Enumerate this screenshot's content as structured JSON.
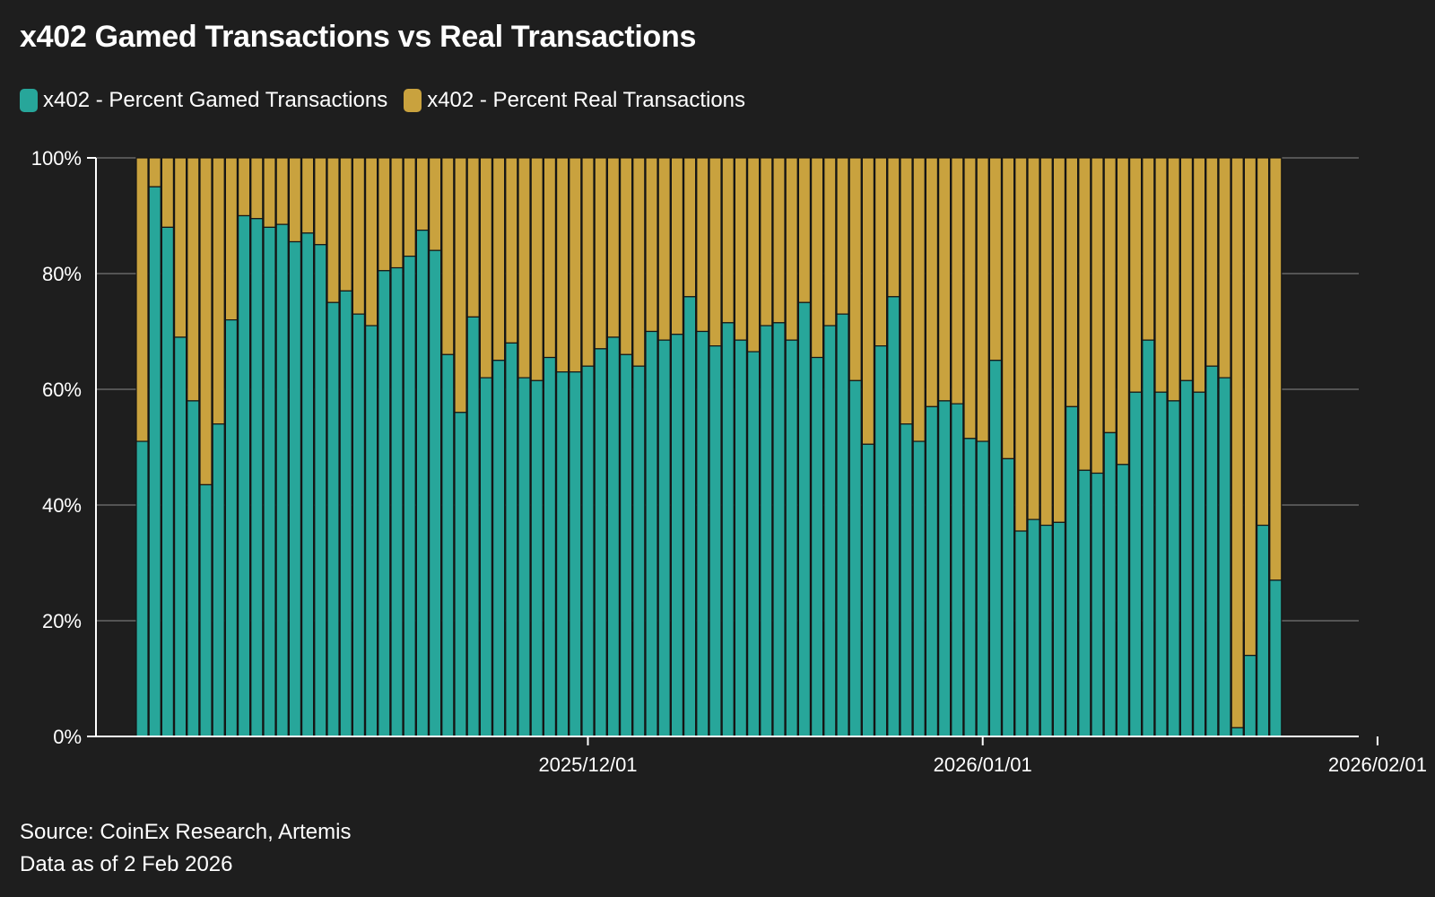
{
  "colors": {
    "background": "#1e1e1e",
    "gamed": "#27a69a",
    "real": "#c9a23e",
    "bar_edge": "#151515",
    "grid": "#8a8a8a",
    "axis": "#ffffff",
    "text": "#ffffff"
  },
  "chart_data": {
    "type": "bar",
    "stacked": true,
    "title": "x402 Gamed Transactions vs Real Transactions",
    "legend_position": "top-left",
    "grid": true,
    "ylim": [
      0,
      100
    ],
    "y_ticks": [
      "0%",
      "20%",
      "40%",
      "60%",
      "80%",
      "100%"
    ],
    "x_ticks": [
      {
        "label": "2025/12/01",
        "date": "2025-12-01"
      },
      {
        "label": "2026/01/01",
        "date": "2026-01-01"
      },
      {
        "label": "2026/02/01",
        "date": "2026-02-01"
      }
    ],
    "x_start_date": "2025-10-27",
    "series": [
      {
        "name": "x402 - Percent Gamed Transactions",
        "values": [
          51,
          95,
          88,
          69,
          58,
          43.5,
          54,
          72,
          90,
          89.5,
          88,
          88.5,
          85.5,
          87,
          85,
          75,
          77,
          73,
          71,
          80.5,
          81,
          83,
          87.5,
          84,
          66,
          56,
          72.5,
          62,
          65,
          68,
          62,
          61.5,
          65.5,
          63,
          63,
          64,
          67,
          69,
          66,
          64,
          70,
          68.5,
          69.5,
          76,
          70,
          67.5,
          71.5,
          68.5,
          66.5,
          71,
          71.5,
          68.5,
          75,
          65.5,
          71,
          73,
          61.5,
          50.5,
          67.5,
          76,
          54,
          51,
          57,
          58,
          57.5,
          51.5,
          51,
          65,
          48,
          35.5,
          37.5,
          36.5,
          37,
          57,
          46,
          45.5,
          52.5,
          47,
          59.5,
          68.5,
          59.5,
          58,
          61.5,
          59.5,
          64,
          62,
          1.5,
          14,
          36.5,
          27
        ]
      },
      {
        "name": "x402 - Percent Real Transactions",
        "values": [
          49,
          5,
          12,
          31,
          42,
          56.5,
          46,
          28,
          10,
          10.5,
          12,
          11.5,
          14.5,
          13,
          15,
          25,
          23,
          27,
          29,
          19.5,
          19,
          17,
          12.5,
          16,
          34,
          44,
          27.5,
          38,
          35,
          32,
          38,
          38.5,
          34.5,
          37,
          37,
          36,
          33,
          31,
          34,
          36,
          30,
          31.5,
          30.5,
          24,
          30,
          32.5,
          28.5,
          31.5,
          33.5,
          29,
          28.5,
          31.5,
          25,
          34.5,
          29,
          27,
          38.5,
          49.5,
          32.5,
          24,
          46,
          49,
          43,
          42,
          42.5,
          48.5,
          49,
          35,
          52,
          64.5,
          62.5,
          63.5,
          63,
          43,
          54,
          54.5,
          47.5,
          53,
          40.5,
          31.5,
          40.5,
          42,
          38.5,
          40.5,
          36,
          38,
          98.5,
          86,
          63.5,
          73
        ]
      }
    ]
  },
  "footer": {
    "source": "Source: CoinEx Research, Artemis",
    "data_as_of": "Data as of 2 Feb 2026"
  }
}
